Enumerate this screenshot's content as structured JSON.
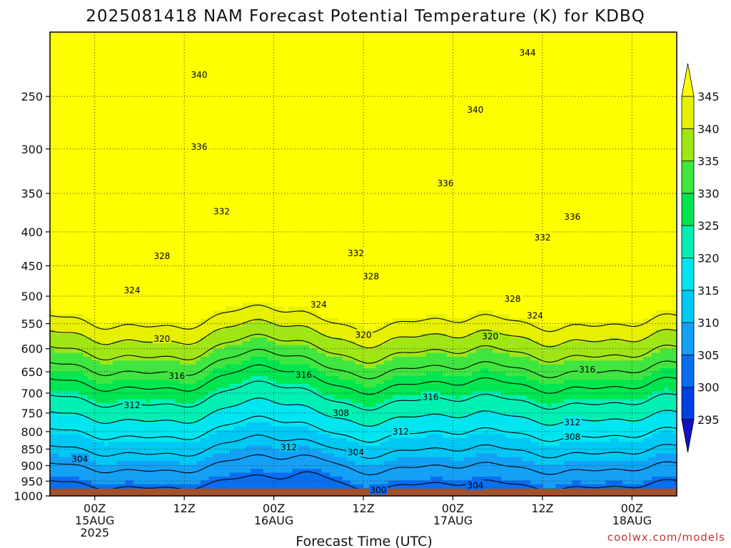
{
  "chart_data": {
    "type": "heatmap",
    "title": "2025081418 NAM Forecast Potential Temperature (K) for KDBQ",
    "xlabel": "Forecast Time (UTC)",
    "ylabel": "",
    "y_axis": {
      "scale": "log-pressure",
      "units": "hPa",
      "inverted": true,
      "ticks": [
        250,
        300,
        350,
        400,
        450,
        500,
        550,
        600,
        650,
        700,
        750,
        800,
        850,
        900,
        950,
        1000
      ],
      "range": [
        200,
        1000
      ]
    },
    "x_axis": {
      "ticks": [
        {
          "hour": "00Z",
          "date": "15AUG",
          "year": "2025"
        },
        {
          "hour": "12Z",
          "date": "",
          "year": ""
        },
        {
          "hour": "00Z",
          "date": "16AUG",
          "year": ""
        },
        {
          "hour": "12Z",
          "date": "",
          "year": ""
        },
        {
          "hour": "00Z",
          "date": "17AUG",
          "year": ""
        },
        {
          "hour": "12Z",
          "date": "",
          "year": ""
        },
        {
          "hour": "00Z",
          "date": "18AUG",
          "year": ""
        }
      ],
      "range_hours": [
        -6,
        78
      ]
    },
    "colorbar": {
      "levels": [
        295,
        300,
        305,
        310,
        315,
        320,
        325,
        330,
        335,
        340,
        345
      ],
      "colors": [
        "#1010c8",
        "#0040e0",
        "#0a6ef0",
        "#14a0f5",
        "#00c8f5",
        "#00e6f0",
        "#00f0b4",
        "#00e650",
        "#40e640",
        "#a0e614",
        "#e6f000",
        "#ffff00"
      ],
      "extend": "both"
    },
    "contour_levels": [
      300,
      304,
      308,
      312,
      316,
      320,
      324,
      328,
      332,
      336,
      340,
      344
    ],
    "contour_labels": [
      {
        "value": "344",
        "pressure": 215,
        "hour": 58
      },
      {
        "value": "340",
        "pressure": 232,
        "hour": 14
      },
      {
        "value": "340",
        "pressure": 262,
        "hour": 51
      },
      {
        "value": "336",
        "pressure": 298,
        "hour": 14
      },
      {
        "value": "336",
        "pressure": 338,
        "hour": 47
      },
      {
        "value": "336",
        "pressure": 380,
        "hour": 64
      },
      {
        "value": "332",
        "pressure": 373,
        "hour": 17
      },
      {
        "value": "332",
        "pressure": 408,
        "hour": 60
      },
      {
        "value": "332",
        "pressure": 431,
        "hour": 35
      },
      {
        "value": "328",
        "pressure": 435,
        "hour": 9
      },
      {
        "value": "328",
        "pressure": 467,
        "hour": 37
      },
      {
        "value": "328",
        "pressure": 505,
        "hour": 56
      },
      {
        "value": "324",
        "pressure": 490,
        "hour": 5
      },
      {
        "value": "324",
        "pressure": 515,
        "hour": 30
      },
      {
        "value": "324",
        "pressure": 535,
        "hour": 59
      },
      {
        "value": "320",
        "pressure": 580,
        "hour": 9
      },
      {
        "value": "320",
        "pressure": 572,
        "hour": 36
      },
      {
        "value": "320",
        "pressure": 575,
        "hour": 53
      },
      {
        "value": "316",
        "pressure": 660,
        "hour": 11
      },
      {
        "value": "316",
        "pressure": 657,
        "hour": 28
      },
      {
        "value": "316",
        "pressure": 645,
        "hour": 66
      },
      {
        "value": "316",
        "pressure": 710,
        "hour": 45
      },
      {
        "value": "312",
        "pressure": 730,
        "hour": 5
      },
      {
        "value": "312",
        "pressure": 800,
        "hour": 41
      },
      {
        "value": "312",
        "pressure": 775,
        "hour": 64
      },
      {
        "value": "312",
        "pressure": 845,
        "hour": 26
      },
      {
        "value": "308",
        "pressure": 750,
        "hour": 33
      },
      {
        "value": "308",
        "pressure": 815,
        "hour": 64
      },
      {
        "value": "304",
        "pressure": 880,
        "hour": -2
      },
      {
        "value": "304",
        "pressure": 860,
        "hour": 35
      },
      {
        "value": "304",
        "pressure": 965,
        "hour": 51
      },
      {
        "value": "300",
        "pressure": 980,
        "hour": 38
      }
    ],
    "ground_level_hpa": 975,
    "grid": true
  },
  "credit": "coolwx.com/models"
}
